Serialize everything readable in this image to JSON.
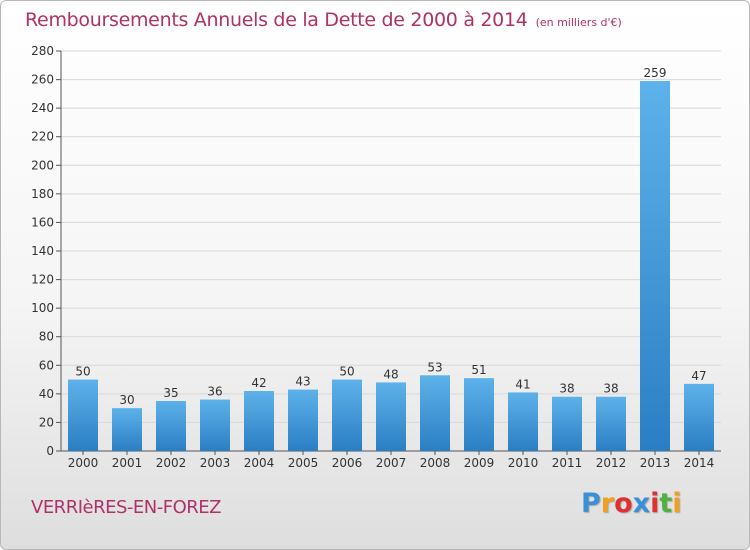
{
  "header": {
    "title": "Remboursements Annuels de la Dette de 2000 à 2014",
    "unit": "(en milliers d'€)"
  },
  "footer": {
    "commune": "VERRIèRES-EN-FOREZ",
    "logo_letters": [
      "P",
      "r",
      "o",
      "x",
      "i",
      "t",
      "i"
    ],
    "logo_colors": [
      "#3a8fd6",
      "#f0a020",
      "#e03030",
      "#3a8fd6",
      "#e03030",
      "#50b040",
      "#f0a020"
    ]
  },
  "colors": {
    "title": "#b0306a",
    "bar_top": "#5eb2ea",
    "bar_bottom": "#2a7ec4",
    "grid": "#d8d8d8"
  },
  "chart_data": {
    "type": "bar",
    "title": "Remboursements Annuels de la Dette de 2000 à 2014",
    "xlabel": "",
    "ylabel": "",
    "categories": [
      "2000",
      "2001",
      "2002",
      "2003",
      "2004",
      "2005",
      "2006",
      "2007",
      "2008",
      "2009",
      "2010",
      "2011",
      "2012",
      "2013",
      "2014"
    ],
    "values": [
      50,
      30,
      35,
      36,
      42,
      43,
      50,
      48,
      53,
      51,
      41,
      38,
      38,
      259,
      47
    ],
    "ylim": [
      0,
      280
    ],
    "yticks": [
      0,
      20,
      40,
      60,
      80,
      100,
      120,
      140,
      160,
      180,
      200,
      220,
      240,
      260,
      280
    ],
    "grid": true,
    "legend": "none"
  }
}
